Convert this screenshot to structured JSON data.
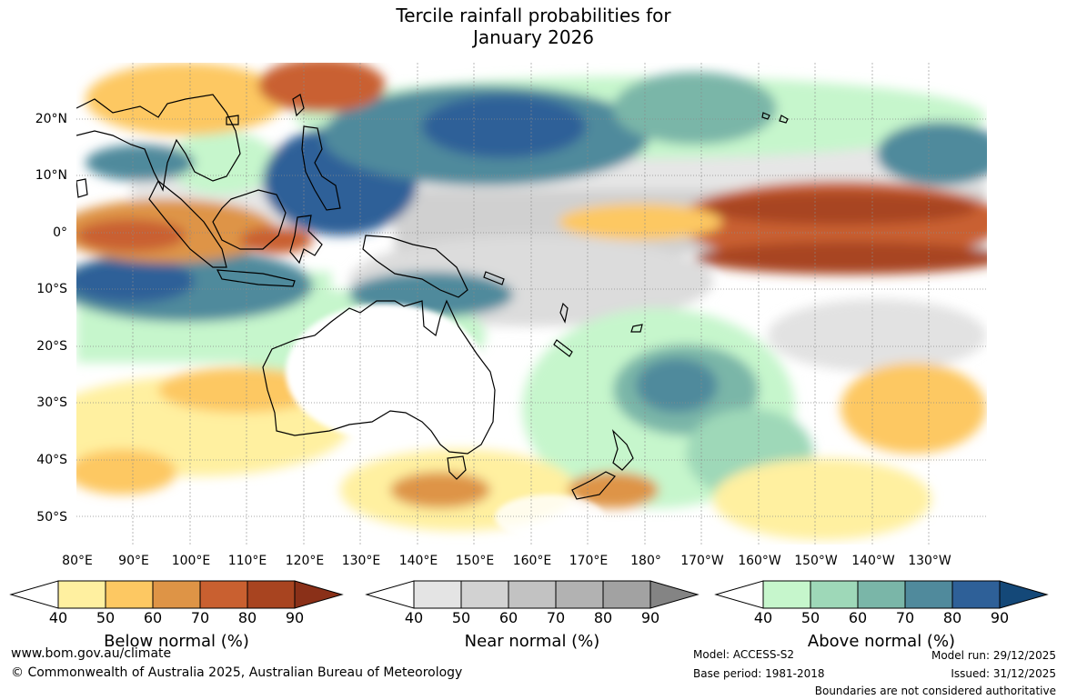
{
  "title": {
    "line1": "Tercile rainfall probabilities for",
    "line2": "January 2026"
  },
  "map": {
    "lat_labels": [
      "20°N",
      "10°N",
      "0°",
      "10°S",
      "20°S",
      "30°S",
      "40°S",
      "50°S"
    ],
    "lon_labels": [
      "80°E",
      "90°E",
      "100°E",
      "110°E",
      "120°E",
      "130°E",
      "140°E",
      "150°E",
      "160°E",
      "170°E",
      "180°",
      "170°W",
      "160°W",
      "150°W",
      "140°W",
      "130°W"
    ]
  },
  "colorbars": {
    "below": {
      "title": "Below normal (%)",
      "ticks": [
        "40",
        "50",
        "60",
        "70",
        "80",
        "90"
      ],
      "colors": [
        "#fff0a0",
        "#fdc862",
        "#de9446",
        "#c96030",
        "#a84420",
        "#8a3018"
      ]
    },
    "near": {
      "title": "Near normal (%)",
      "ticks": [
        "40",
        "50",
        "60",
        "70",
        "80",
        "90"
      ],
      "colors": [
        "#e4e4e4",
        "#d2d2d2",
        "#c2c2c2",
        "#b2b2b2",
        "#a2a2a2",
        "#848484"
      ]
    },
    "above": {
      "title": "Above normal (%)",
      "ticks": [
        "40",
        "50",
        "60",
        "70",
        "80",
        "90"
      ],
      "colors": [
        "#c6f6cc",
        "#9ed8b8",
        "#7ab6a8",
        "#508a9c",
        "#2e6098",
        "#144878"
      ]
    }
  },
  "footer": {
    "website": "www.bom.gov.au/climate",
    "copyright": "© Commonwealth of Australia 2025, Australian Bureau of Meteorology",
    "model": "Model: ACCESS-S2",
    "base_period": "Base period: 1981-2018",
    "model_run": "Model run: 29/12/2025",
    "issued": "Issued: 31/12/2025",
    "disclaimer": "Boundaries are not considered authoritative"
  }
}
